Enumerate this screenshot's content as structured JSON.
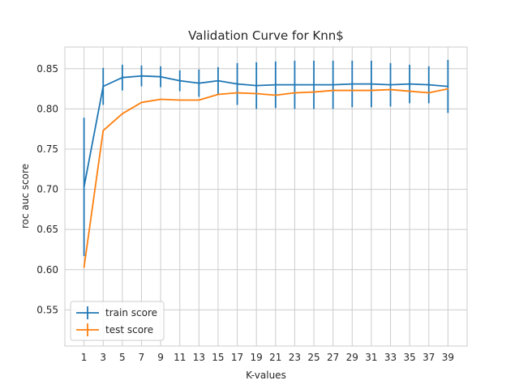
{
  "chart_data": {
    "type": "line",
    "title": "Validation Curve for Knn$",
    "xlabel": "K-values",
    "ylabel": "roc auc score",
    "x": [
      1,
      3,
      5,
      7,
      9,
      11,
      13,
      15,
      17,
      19,
      21,
      23,
      25,
      27,
      29,
      31,
      33,
      35,
      37,
      39
    ],
    "x_ticks": [
      "1",
      "3",
      "5",
      "7",
      "9",
      "11",
      "13",
      "15",
      "17",
      "19",
      "21",
      "23",
      "25",
      "27",
      "29",
      "31",
      "33",
      "35",
      "37",
      "39"
    ],
    "y_ticks": [
      "0.55",
      "0.60",
      "0.65",
      "0.70",
      "0.75",
      "0.80",
      "0.85"
    ],
    "xlim": [
      -1,
      41
    ],
    "ylim": [
      0.505,
      0.877
    ],
    "grid": true,
    "legend_position": "lower-left",
    "series": [
      {
        "name": "train score",
        "color": "#1f77b4",
        "values": [
          0.703,
          0.828,
          0.839,
          0.841,
          0.84,
          0.835,
          0.832,
          0.835,
          0.831,
          0.829,
          0.83,
          0.83,
          0.83,
          0.83,
          0.831,
          0.831,
          0.83,
          0.831,
          0.83,
          0.828
        ],
        "error": [
          0.086,
          0.023,
          0.016,
          0.013,
          0.013,
          0.013,
          0.017,
          0.017,
          0.026,
          0.029,
          0.029,
          0.03,
          0.03,
          0.03,
          0.029,
          0.029,
          0.027,
          0.024,
          0.023,
          0.033
        ]
      },
      {
        "name": "test score",
        "color": "#ff7f0e",
        "values": [
          0.603,
          0.773,
          0.794,
          0.808,
          0.812,
          0.811,
          0.811,
          0.818,
          0.82,
          0.819,
          0.817,
          0.82,
          0.821,
          0.823,
          0.823,
          0.823,
          0.824,
          0.822,
          0.82,
          0.825
        ]
      }
    ]
  }
}
